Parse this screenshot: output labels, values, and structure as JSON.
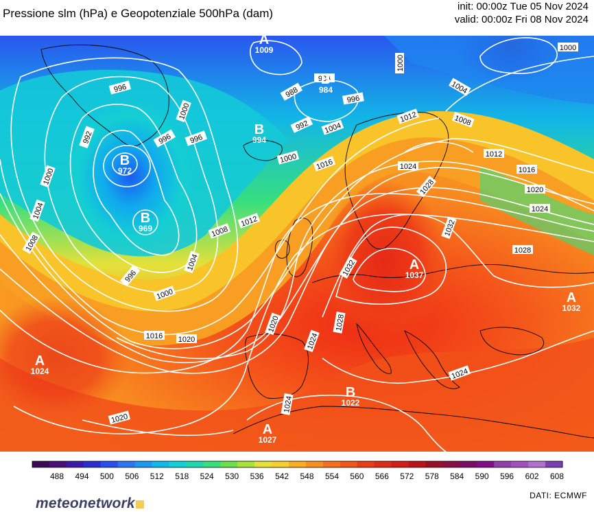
{
  "header": {
    "title": "Pressione slm (hPa) e Geopotenziale 500hPa (dam)",
    "init": "init: 00:00z Tue 05 Nov 2024",
    "valid": "valid: 00:00z Fri 08 Nov 2024"
  },
  "footer": {
    "logo_bold": "meteonetwork",
    "source": "DATI:  ECMWF"
  },
  "colorbar": {
    "ticks": [
      "488",
      "494",
      "500",
      "506",
      "512",
      "518",
      "524",
      "530",
      "536",
      "542",
      "548",
      "554",
      "560",
      "566",
      "572",
      "578",
      "584",
      "590",
      "596",
      "602",
      "608"
    ],
    "colors": [
      "#3b0a55",
      "#4b0f7a",
      "#3a1aa6",
      "#2a2ed0",
      "#2a4ff0",
      "#2d74f2",
      "#1c98f0",
      "#10b8ec",
      "#12cfd8",
      "#1fd8b0",
      "#37df7e",
      "#6be04c",
      "#a9e23a",
      "#e4e13a",
      "#f7cf2e",
      "#f9ad25",
      "#f88f21",
      "#f5701c",
      "#f05519",
      "#e93b17",
      "#df2a16",
      "#d21d16",
      "#b8141a",
      "#9a0f28",
      "#8a0d44",
      "#7a0d64",
      "#7e0e8a",
      "#9040a8",
      "#a050c0",
      "#b070d0",
      "#7a40b0"
    ]
  },
  "map": {
    "pressure_centers": [
      {
        "letter": "A",
        "value": "1009",
        "color": "#ffffff"
      },
      {
        "letter": "B",
        "value": "984",
        "color": "#ffffff"
      },
      {
        "letter": "B",
        "value": "972",
        "color": "#ffffff"
      },
      {
        "letter": "B",
        "value": "969",
        "color": "#ffffff"
      },
      {
        "letter": "B",
        "value": "994",
        "color": "#ffffff"
      },
      {
        "letter": "A",
        "value": "1024",
        "color": "#ffffff"
      },
      {
        "letter": "A",
        "value": "1037",
        "color": "#ffffff"
      },
      {
        "letter": "A",
        "value": "1032",
        "color": "#ffffff"
      },
      {
        "letter": "B",
        "value": "1022",
        "color": "#ffffff"
      },
      {
        "letter": "A",
        "value": "1027",
        "color": "#ffffff"
      }
    ],
    "isobar_labels": [
      "1000",
      "1004",
      "996",
      "1000",
      "984",
      "988",
      "996",
      "992",
      "996",
      "1004",
      "1000",
      "992",
      "996",
      "1000",
      "1008",
      "1012",
      "1004",
      "1016",
      "1012",
      "1024",
      "1016",
      "1020",
      "1024",
      "1028",
      "1032",
      "1028",
      "1032",
      "1008",
      "1012",
      "1016",
      "1004",
      "1008",
      "1000",
      "996",
      "1004",
      "1008",
      "1012",
      "1016",
      "1020",
      "1024",
      "1020",
      "1024",
      "1020",
      "1028",
      "1024",
      "1000"
    ]
  }
}
